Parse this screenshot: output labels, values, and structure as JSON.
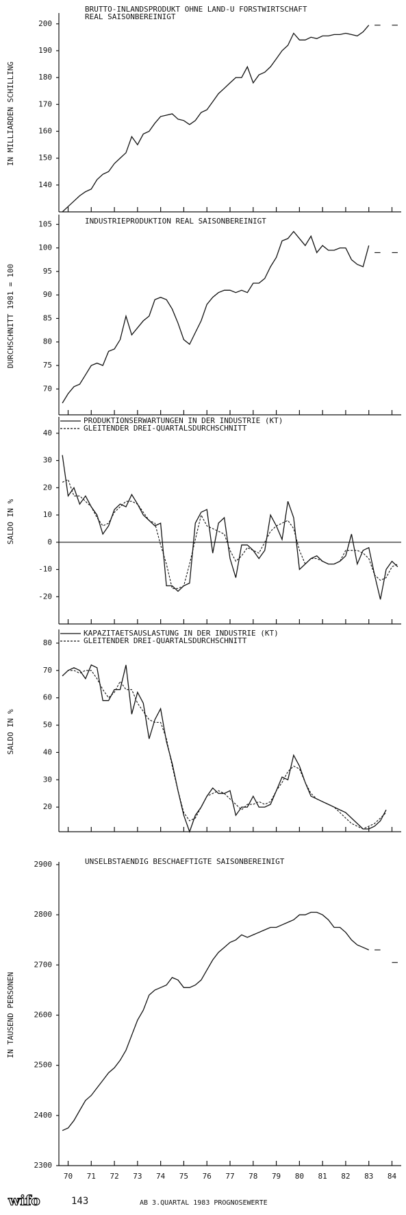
{
  "chart_data": [
    {
      "type": "line",
      "title": "BRUTTO-INLANDSPRODUKT OHNE LAND-U FORSTWIRTSCHAFT",
      "subtitle": "REAL SAISONBEREINIGT",
      "y_label": "IN MILLIARDEN SCHILLING",
      "x": [
        69.75,
        70,
        70.25,
        70.5,
        70.75,
        71,
        71.25,
        71.5,
        71.75,
        72,
        72.25,
        72.5,
        72.75,
        73,
        73.25,
        73.5,
        73.75,
        74,
        74.25,
        74.5,
        74.75,
        75,
        75.25,
        75.5,
        75.75,
        76,
        76.25,
        76.5,
        76.75,
        77,
        77.25,
        77.5,
        77.75,
        78,
        78.25,
        78.5,
        78.75,
        79,
        79.25,
        79.5,
        79.75,
        80,
        80.25,
        80.5,
        80.75,
        81,
        81.25,
        81.5,
        81.75,
        82,
        82.25,
        82.5,
        82.75,
        83
      ],
      "series": [
        {
          "color": "#111",
          "style": "solid",
          "values": [
            130,
            132,
            134,
            136,
            137.5,
            138.5,
            142,
            144,
            145,
            148,
            150,
            152,
            158,
            155,
            159,
            160,
            163,
            165.5,
            166,
            166.5,
            164.5,
            164,
            162.5,
            164,
            167,
            168,
            171,
            174,
            176,
            178,
            180,
            180,
            184,
            178,
            181,
            182,
            184,
            187,
            190,
            192,
            196.5,
            194,
            194,
            195,
            194.5,
            195.5,
            195.5,
            196,
            196,
            196.5,
            196,
            195.5,
            197,
            199.5
          ]
        },
        {
          "color": "#111",
          "style": "dashed",
          "x": [
            83.25,
            83.5,
            83.75,
            84,
            84.25
          ],
          "values": [
            199.5,
            199.5,
            null,
            199.5,
            199.5
          ]
        }
      ],
      "xlim": [
        69.6,
        84.4
      ],
      "xticks": [
        70,
        71,
        72,
        73,
        74,
        75,
        76,
        77,
        78,
        79,
        80,
        81,
        82,
        83,
        84
      ],
      "ylim": [
        130,
        203
      ],
      "yticks": [
        140,
        150,
        160,
        170,
        180,
        190,
        200
      ]
    },
    {
      "type": "line",
      "title": "INDUSTRIEPRODUKTION  REAL  SAISONBEREINIGT",
      "y_label": "DURCHSCHNITT 1981 = 100",
      "x": [
        69.75,
        70,
        70.25,
        70.5,
        70.75,
        71,
        71.25,
        71.5,
        71.75,
        72,
        72.25,
        72.5,
        72.75,
        73,
        73.25,
        73.5,
        73.75,
        74,
        74.25,
        74.5,
        74.75,
        75,
        75.25,
        75.5,
        75.75,
        76,
        76.25,
        76.5,
        76.75,
        77,
        77.25,
        77.5,
        77.75,
        78,
        78.25,
        78.5,
        78.75,
        79,
        79.25,
        79.5,
        79.75,
        80,
        80.25,
        80.5,
        80.75,
        81,
        81.25,
        81.5,
        81.75,
        82,
        82.25,
        82.5,
        82.75,
        83
      ],
      "series": [
        {
          "color": "#111",
          "style": "solid",
          "values": [
            67,
            69,
            70.5,
            71,
            73,
            75,
            75.5,
            75,
            78,
            78.5,
            80.5,
            85.5,
            81.5,
            83,
            84.5,
            85.5,
            89,
            89.5,
            89,
            87,
            84,
            80.5,
            79.5,
            82,
            84.5,
            88,
            89.5,
            90.5,
            91,
            91,
            90.5,
            91,
            90.5,
            92.5,
            92.5,
            93.5,
            96,
            98,
            101.5,
            102,
            103.5,
            102,
            100.5,
            102.5,
            99,
            100.5,
            99.5,
            99.5,
            100,
            100,
            97.5,
            96.5,
            96,
            100.5
          ]
        },
        {
          "color": "#111",
          "style": "dashed",
          "x": [
            83.25,
            83.5,
            83.75,
            84,
            84.25
          ],
          "values": [
            99,
            99,
            null,
            99,
            99
          ]
        }
      ],
      "xlim": [
        69.6,
        84.4
      ],
      "xticks": [
        70,
        71,
        72,
        73,
        74,
        75,
        76,
        77,
        78,
        79,
        80,
        81,
        82,
        83,
        84
      ],
      "ylim": [
        64.5,
        106.5
      ],
      "yticks": [
        70,
        75,
        80,
        85,
        90,
        95,
        100,
        105
      ]
    },
    {
      "type": "line",
      "y_label": "SALDO IN %",
      "legend": "top-left",
      "zero_line": true,
      "x": [
        69.75,
        70,
        70.25,
        70.5,
        70.75,
        71,
        71.25,
        71.5,
        71.75,
        72,
        72.25,
        72.5,
        72.75,
        73,
        73.25,
        73.5,
        73.75,
        74,
        74.25,
        74.5,
        74.75,
        75,
        75.25,
        75.5,
        75.75,
        76,
        76.25,
        76.5,
        76.75,
        77,
        77.25,
        77.5,
        77.75,
        78,
        78.25,
        78.5,
        78.75,
        79,
        79.25,
        79.5,
        79.75,
        80,
        80.25,
        80.5,
        80.75,
        81,
        81.25,
        81.5,
        81.75,
        82,
        82.25,
        82.5,
        82.75,
        83,
        83.25,
        83.5,
        83.75,
        84,
        84.25
      ],
      "series": [
        {
          "name": "PRODUKTIONSERWARTUNGEN IN DER INDUSTRIE (KT)",
          "color": "#111",
          "style": "solid",
          "values": [
            32,
            17,
            20,
            14,
            17,
            13,
            10,
            3,
            6,
            12,
            14,
            13,
            17.5,
            14,
            10,
            8,
            6,
            7,
            -16,
            -16,
            -18,
            -16,
            -15,
            7,
            11,
            12,
            -4,
            7,
            9,
            -6,
            -13,
            -1,
            -1,
            -3,
            -6,
            -3,
            10,
            6,
            1,
            15,
            9,
            -10,
            -8,
            -6,
            -5,
            -7,
            -8,
            -8,
            -7,
            -5,
            3,
            -8,
            -3,
            -2,
            -12,
            -21,
            -10,
            -7,
            -9
          ]
        },
        {
          "name": "GLEITENDER DREI-QUARTALSDURCHSCHNITT",
          "color": "#111",
          "style": "dotted",
          "values": [
            22,
            23,
            17,
            17,
            15,
            13,
            9,
            6,
            7,
            11,
            13,
            15,
            15,
            14,
            11,
            8,
            7,
            -1,
            -8,
            -17,
            -17,
            -16,
            -8,
            1,
            10,
            6,
            5,
            4,
            3,
            -3,
            -7,
            -5,
            -2,
            -3,
            -4,
            0,
            4,
            6,
            7,
            8,
            5,
            -3,
            -8,
            -6,
            -6,
            -7,
            -8,
            -8,
            -7,
            -3,
            -3,
            -3,
            -4,
            -6,
            -12,
            -14,
            -13,
            -9,
            -8
          ]
        }
      ],
      "xlim": [
        69.6,
        84.4
      ],
      "xticks": [
        70,
        71,
        72,
        73,
        74,
        75,
        76,
        77,
        78,
        79,
        80,
        81,
        82,
        83,
        84
      ],
      "ylim": [
        -30,
        45
      ],
      "yticks": [
        -20,
        -10,
        0,
        10,
        20,
        30,
        40
      ]
    },
    {
      "type": "line",
      "y_label": "SALDO IN %",
      "legend": "top-left",
      "x": [
        69.75,
        70,
        70.25,
        70.5,
        70.75,
        71,
        71.25,
        71.5,
        71.75,
        72,
        72.25,
        72.5,
        72.75,
        73,
        73.25,
        73.5,
        73.75,
        74,
        74.25,
        74.5,
        74.75,
        75,
        75.25,
        75.5,
        75.75,
        76,
        76.25,
        76.5,
        76.75,
        77,
        77.25,
        77.5,
        77.75,
        78,
        78.25,
        78.5,
        78.75,
        79,
        79.25,
        79.5,
        79.75,
        80,
        80.25,
        80.5,
        80.75,
        81,
        81.25,
        81.5,
        81.75,
        82,
        82.25,
        82.5,
        82.75,
        83,
        83.25,
        83.5,
        83.75
      ],
      "series": [
        {
          "name": "KAPAZITAETSAUSLASTUNG IN DER INDUSTRIE (KT)",
          "color": "#111",
          "style": "solid",
          "values": [
            68,
            70,
            71,
            70,
            67,
            72,
            71,
            59,
            59,
            63,
            63,
            72,
            54,
            62,
            58,
            45,
            52,
            56,
            44,
            36,
            26,
            17,
            11,
            17,
            20,
            24,
            27,
            25,
            25,
            26,
            17,
            20,
            20,
            24,
            20,
            20,
            21,
            26,
            31,
            30,
            39,
            35,
            29,
            24,
            23,
            22,
            21,
            20,
            19,
            18,
            16,
            14,
            12,
            12,
            13,
            15,
            19
          ]
        },
        {
          "name": "GLEITENDER DREI-QUARTALSDURCHSCHNITT",
          "color": "#111",
          "style": "dotted",
          "values": [
            68,
            70,
            70,
            69,
            70,
            70,
            67,
            63,
            60,
            62,
            66,
            63,
            63,
            58,
            55,
            52,
            51,
            51,
            45,
            35,
            26,
            18,
            15,
            16,
            20,
            24,
            25,
            26,
            25,
            23,
            21,
            19,
            21,
            21,
            22,
            21,
            22,
            26,
            29,
            33,
            35,
            34,
            29,
            25,
            23,
            22,
            21,
            20,
            18,
            16,
            14,
            13,
            12,
            13,
            14,
            16,
            18
          ]
        }
      ],
      "xlim": [
        69.6,
        84.4
      ],
      "xticks": [
        70,
        71,
        72,
        73,
        74,
        75,
        76,
        77,
        78,
        79,
        80,
        81,
        82,
        83,
        84
      ],
      "ylim": [
        11,
        84
      ],
      "yticks": [
        20,
        30,
        40,
        50,
        60,
        70,
        80
      ]
    },
    {
      "type": "line",
      "title": "UNSELBSTAENDIG BESCHAEFTIGTE  SAISONBEREINIGT",
      "y_label": "IN TAUSEND PERSONEN",
      "x": [
        69.75,
        70,
        70.25,
        70.5,
        70.75,
        71,
        71.25,
        71.5,
        71.75,
        72,
        72.25,
        72.5,
        72.75,
        73,
        73.25,
        73.5,
        73.75,
        74,
        74.25,
        74.5,
        74.75,
        75,
        75.25,
        75.5,
        75.75,
        76,
        76.25,
        76.5,
        76.75,
        77,
        77.25,
        77.5,
        77.75,
        78,
        78.25,
        78.5,
        78.75,
        79,
        79.25,
        79.5,
        79.75,
        80,
        80.25,
        80.5,
        80.75,
        81,
        81.25,
        81.5,
        81.75,
        82,
        82.25,
        82.5,
        82.75,
        83
      ],
      "series": [
        {
          "color": "#111",
          "style": "solid",
          "values": [
            2370,
            2375,
            2390,
            2410,
            2430,
            2440,
            2455,
            2470,
            2485,
            2495,
            2510,
            2530,
            2560,
            2590,
            2610,
            2640,
            2650,
            2655,
            2660,
            2675,
            2670,
            2655,
            2655,
            2660,
            2670,
            2690,
            2710,
            2725,
            2735,
            2745,
            2750,
            2760,
            2755,
            2760,
            2765,
            2770,
            2775,
            2775,
            2780,
            2785,
            2790,
            2800,
            2800,
            2805,
            2805,
            2800,
            2790,
            2775,
            2775,
            2765,
            2750,
            2740,
            2735,
            2730
          ]
        },
        {
          "color": "#111",
          "style": "dashed",
          "x": [
            83.25,
            83.5,
            83.75,
            84,
            84.25
          ],
          "values": [
            2730,
            2730,
            null,
            2705,
            2705
          ]
        }
      ],
      "xlim": [
        69.6,
        84.4
      ],
      "xticks": [
        70,
        71,
        72,
        73,
        74,
        75,
        76,
        77,
        78,
        79,
        80,
        81,
        82,
        83,
        84
      ],
      "ylim": [
        2300,
        2900
      ],
      "yticks": [
        2300,
        2400,
        2500,
        2600,
        2700,
        2800,
        2900
      ]
    }
  ],
  "footer": {
    "logo": "wifo",
    "page": "143",
    "note": "AB 3.QUARTAL 1983 PROGNOSEWERTE"
  }
}
